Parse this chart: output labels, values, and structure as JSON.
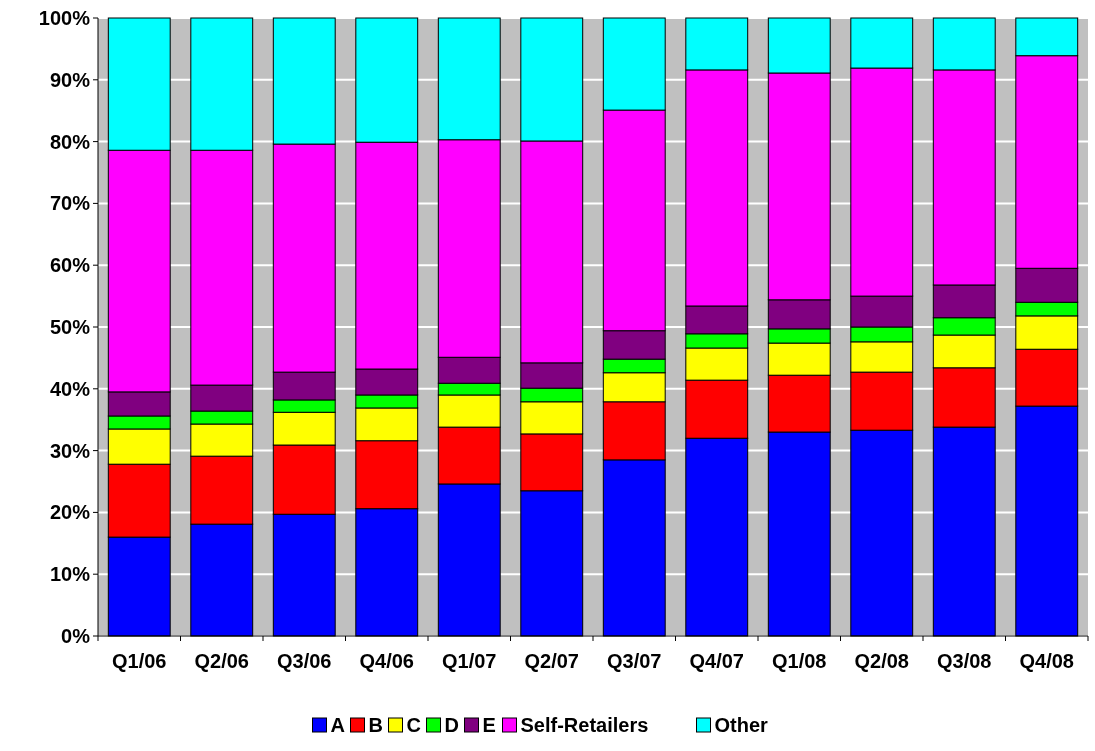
{
  "chart_data": {
    "type": "bar",
    "stacked": true,
    "categories": [
      "Q1/06",
      "Q2/06",
      "Q3/06",
      "Q4/06",
      "Q1/07",
      "Q2/07",
      "Q3/07",
      "Q4/07",
      "Q1/08",
      "Q2/08",
      "Q3/08",
      "Q4/08"
    ],
    "series": [
      {
        "name": "A",
        "color": "#0000ff",
        "values": [
          16.0,
          18.1,
          19.7,
          20.6,
          24.6,
          23.5,
          28.5,
          32.0,
          33.0,
          33.3,
          33.8,
          37.2
        ]
      },
      {
        "name": "B",
        "color": "#ff0000",
        "values": [
          11.8,
          11.0,
          11.2,
          11.0,
          9.2,
          9.2,
          9.4,
          9.4,
          9.2,
          9.4,
          9.6,
          9.2
        ]
      },
      {
        "name": "C",
        "color": "#ffff00",
        "values": [
          5.7,
          5.2,
          5.3,
          5.3,
          5.2,
          5.2,
          4.7,
          5.2,
          5.2,
          4.9,
          5.3,
          5.4
        ]
      },
      {
        "name": "D",
        "color": "#00ff00",
        "values": [
          2.1,
          2.1,
          2.0,
          2.1,
          1.9,
          2.2,
          2.2,
          2.3,
          2.3,
          2.4,
          2.8,
          2.2
        ]
      },
      {
        "name": "E",
        "color": "#800080",
        "values": [
          3.9,
          4.2,
          4.5,
          4.2,
          4.2,
          4.1,
          4.6,
          4.5,
          4.7,
          5.0,
          5.3,
          5.5
        ]
      },
      {
        "name": "Self-Retailers",
        "color": "#ff00ff",
        "values": [
          39.1,
          38.0,
          36.9,
          36.7,
          35.2,
          35.9,
          35.7,
          38.2,
          36.7,
          36.9,
          34.8,
          34.4
        ]
      },
      {
        "name": "Other",
        "color": "#00ffff",
        "values": [
          21.4,
          21.4,
          20.4,
          20.1,
          19.7,
          19.9,
          14.9,
          8.4,
          8.9,
          8.1,
          8.4,
          6.1
        ]
      }
    ],
    "ylim": [
      0,
      100
    ],
    "yticks": [
      {
        "value": 0,
        "label": "0%"
      },
      {
        "value": 10,
        "label": "10%"
      },
      {
        "value": 20,
        "label": "20%"
      },
      {
        "value": 30,
        "label": "30%"
      },
      {
        "value": 40,
        "label": "40%"
      },
      {
        "value": 50,
        "label": "50%"
      },
      {
        "value": 60,
        "label": "60%"
      },
      {
        "value": 70,
        "label": "70%"
      },
      {
        "value": 80,
        "label": "80%"
      },
      {
        "value": 90,
        "label": "90%"
      },
      {
        "value": 100,
        "label": "100%"
      }
    ],
    "grid": "y",
    "legend": "bottom"
  }
}
